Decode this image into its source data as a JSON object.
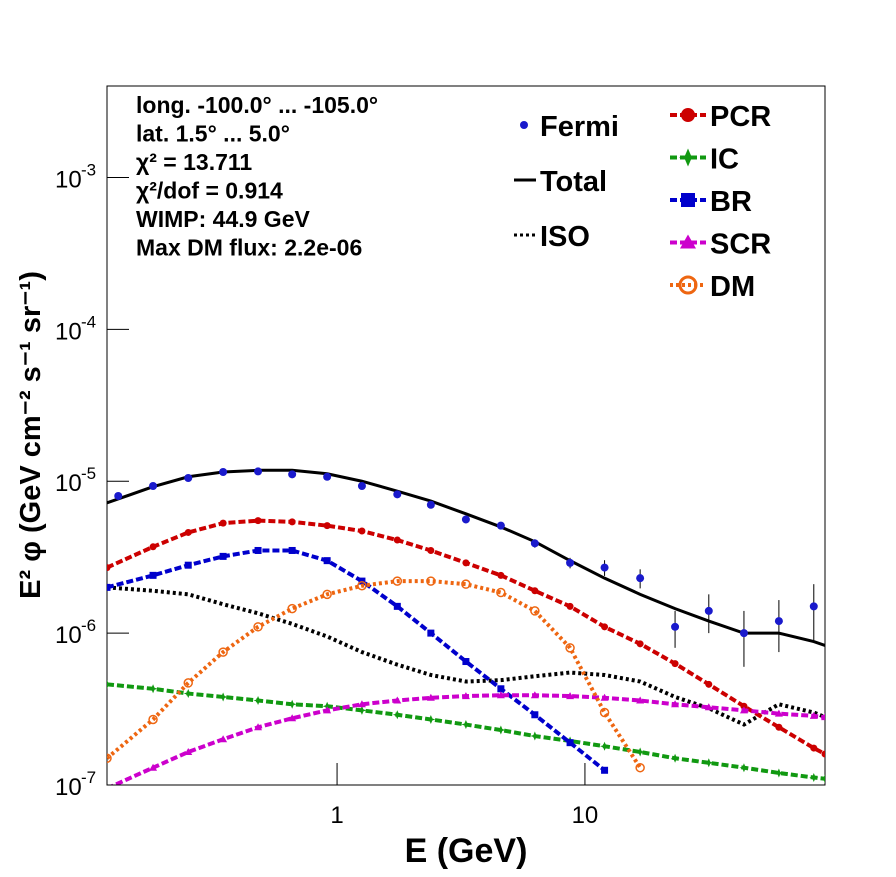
{
  "chart_data": {
    "type": "line",
    "xlabel": "E (GeV)",
    "ylabel": "E² φ (GeV cm⁻² s⁻¹ sr⁻¹)",
    "log_x": true,
    "log_y": true,
    "xlim": [
      0.118,
      93
    ],
    "ylim": [
      1e-07,
      0.004
    ],
    "xticks": [
      1,
      10
    ],
    "yticks": [
      {
        "value": 1e-07,
        "label": "10",
        "exponent": "-7"
      },
      {
        "value": 1e-06,
        "label": "10",
        "exponent": "-6"
      },
      {
        "value": 1e-05,
        "label": "10",
        "exponent": "-5"
      },
      {
        "value": 0.0001,
        "label": "10",
        "exponent": "-4"
      },
      {
        "value": 0.001,
        "label": "10",
        "exponent": "-3"
      }
    ],
    "annotations": [
      "long. -100.0° ... -105.0°",
      "lat. 1.5° ... 5.0°",
      "χ² = 13.711",
      "χ²/dof = 0.914",
      "WIMP: 44.9 GeV",
      "Max DM flux: 2.2e-06"
    ],
    "points": {
      "name": "Fermi",
      "color": "#1a1acc",
      "x": [
        0.131,
        0.181,
        0.251,
        0.347,
        0.48,
        0.659,
        0.912,
        1.26,
        1.75,
        2.39,
        3.31,
        4.58,
        6.28,
        8.71,
        12.0,
        16.7,
        23.1,
        31.6,
        43.8,
        60.6,
        83.8
      ],
      "values": [
        8e-06,
        9.3e-06,
        1.05e-05,
        1.15e-05,
        1.16e-05,
        1.11e-05,
        1.07e-05,
        9.3e-06,
        8.2e-06,
        7e-06,
        5.6e-06,
        5.1e-06,
        3.9e-06,
        2.9e-06,
        2.7e-06,
        2.3e-06,
        1.1e-06,
        1.4e-06,
        1e-06,
        1.2e-06,
        1.5e-06
      ],
      "errors": [
        1e-07,
        1e-07,
        1e-07,
        1.2e-07,
        1.2e-07,
        1.2e-07,
        1.2e-07,
        1.1e-07,
        1.1e-07,
        1.1e-07,
        1.5e-07,
        1.7e-07,
        2.5e-07,
        2.3e-07,
        3.2e-07,
        3.3e-07,
        3e-07,
        4e-07,
        4e-07,
        4.5e-07,
        6e-07
      ]
    },
    "x": [
      0.118,
      0.181,
      0.251,
      0.347,
      0.48,
      0.659,
      0.912,
      1.26,
      1.75,
      2.39,
      3.31,
      4.58,
      6.28,
      8.71,
      12.0,
      16.7,
      23.1,
      31.6,
      43.8,
      60.6,
      83.8,
      93
    ],
    "series": [
      {
        "name": "Total",
        "color": "#000000",
        "style": "solid",
        "marker": "none",
        "legend": "left",
        "values": [
          7.2e-06,
          9.2e-06,
          1.07e-05,
          1.15e-05,
          1.18e-05,
          1.18e-05,
          1.12e-05,
          1e-05,
          8.6e-06,
          7.4e-06,
          6.1e-06,
          5e-06,
          4e-06,
          3e-06,
          2.3e-06,
          1.8e-06,
          1.45e-06,
          1.2e-06,
          1e-06,
          1e-06,
          8.8e-07,
          8.3e-07
        ]
      },
      {
        "name": "ISO",
        "color": "#000000",
        "style": "dotted",
        "marker": "none",
        "legend": "left",
        "values": [
          2e-06,
          1.9e-06,
          1.8e-06,
          1.55e-06,
          1.35e-06,
          1.15e-06,
          9.5e-07,
          7.5e-07,
          6.2e-07,
          5.3e-07,
          4.8e-07,
          4.9e-07,
          5.2e-07,
          5.5e-07,
          5.3e-07,
          4.8e-07,
          3.8e-07,
          3.2e-07,
          2.5e-07,
          3.4e-07,
          3e-07,
          2.8e-07
        ]
      },
      {
        "name": "PCR",
        "color": "#cc0000",
        "style": "dashed",
        "marker": "circle",
        "legend": "right",
        "values": [
          2.7e-06,
          3.7e-06,
          4.6e-06,
          5.3e-06,
          5.5e-06,
          5.4e-06,
          5.1e-06,
          4.7e-06,
          4.1e-06,
          3.5e-06,
          2.9e-06,
          2.4e-06,
          1.9e-06,
          1.5e-06,
          1.1e-06,
          8.5e-07,
          6.3e-07,
          4.6e-07,
          3.3e-07,
          2.4e-07,
          1.75e-07,
          1.6e-07
        ]
      },
      {
        "name": "IC",
        "color": "#119911",
        "style": "dashed",
        "marker": "star",
        "legend": "right",
        "values": [
          4.6e-07,
          4.3e-07,
          4e-07,
          3.8e-07,
          3.6e-07,
          3.4e-07,
          3.3e-07,
          3.1e-07,
          2.9e-07,
          2.7e-07,
          2.5e-07,
          2.3e-07,
          2.1e-07,
          1.95e-07,
          1.8e-07,
          1.65e-07,
          1.5e-07,
          1.4e-07,
          1.3e-07,
          1.2e-07,
          1.12e-07,
          1.1e-07
        ]
      },
      {
        "name": "BR",
        "color": "#0000cc",
        "style": "dashed",
        "marker": "square",
        "legend": "right",
        "values": [
          2e-06,
          2.4e-06,
          2.8e-06,
          3.2e-06,
          3.5e-06,
          3.5e-06,
          3e-06,
          2.2e-06,
          1.5e-06,
          1e-06,
          6.5e-07,
          4.3e-07,
          2.9e-07,
          1.9e-07,
          1.25e-07,
          null,
          null,
          null,
          null,
          null,
          null,
          null
        ]
      },
      {
        "name": "SCR",
        "color": "#cc00cc",
        "style": "dashed",
        "marker": "triangle",
        "legend": "right",
        "values": [
          9.5e-08,
          1.3e-07,
          1.65e-07,
          2e-07,
          2.4e-07,
          2.75e-07,
          3.1e-07,
          3.4e-07,
          3.6e-07,
          3.75e-07,
          3.85e-07,
          3.9e-07,
          3.9e-07,
          3.85e-07,
          3.75e-07,
          3.6e-07,
          3.4e-07,
          3.25e-07,
          3.1e-07,
          2.95e-07,
          2.85e-07,
          2.8e-07
        ]
      },
      {
        "name": "DM",
        "color": "#ee6611",
        "style": "dotted",
        "marker": "open-circle",
        "legend": "right",
        "values": [
          1.5e-07,
          2.7e-07,
          4.7e-07,
          7.5e-07,
          1.1e-06,
          1.45e-06,
          1.8e-06,
          2.05e-06,
          2.2e-06,
          2.2e-06,
          2.1e-06,
          1.85e-06,
          1.4e-06,
          8e-07,
          3e-07,
          1.3e-07,
          null,
          null,
          null,
          null,
          null,
          null
        ]
      }
    ]
  }
}
